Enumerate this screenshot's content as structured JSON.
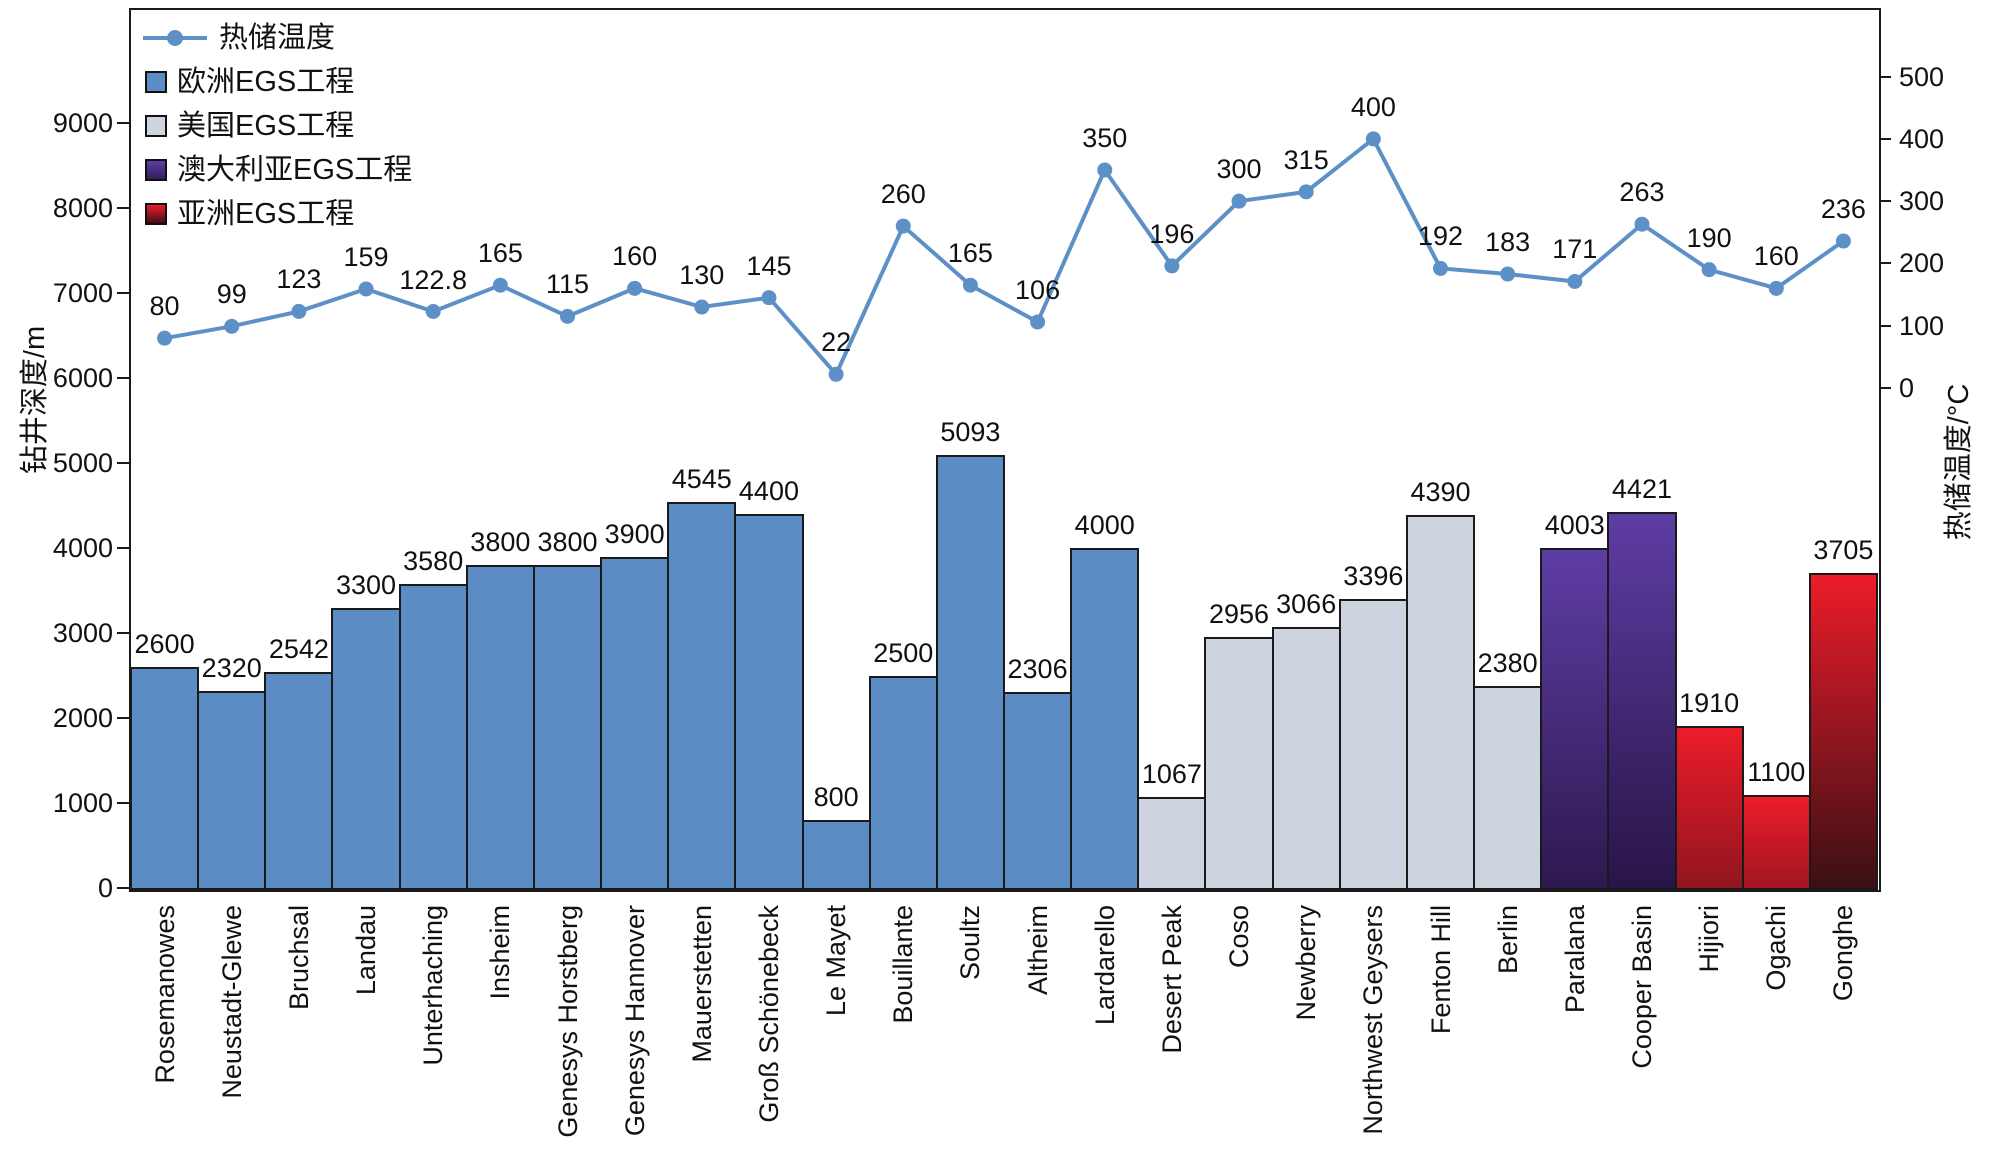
{
  "chart_data": {
    "type": "bar+line",
    "title": "",
    "categories": [
      "Rosemanowes",
      "Neustadt-Glewe",
      "Bruchsal",
      "Landau",
      "Unterhaching",
      "Insheim",
      "Genesys Horstberg",
      "Genesys Hannover",
      "Mauerstetten",
      "Groß Schönebeck",
      "Le Mayet",
      "Bouillante",
      "Soultz",
      "Altheim",
      "Lardarello",
      "Desert Peak",
      "Coso",
      "Newberry",
      "Northwest Geysers",
      "Fenton Hill",
      "Berlin",
      "Paralana",
      "Cooper Basin",
      "Hijiori",
      "Ogachi",
      "Gonghe"
    ],
    "bar_series": {
      "axis": "left",
      "values": [
        2600,
        2320,
        2542,
        3300,
        3580,
        3800,
        3800,
        3900,
        4545,
        4400,
        800,
        2500,
        5093,
        2306,
        4000,
        1067,
        2956,
        3066,
        3396,
        4390,
        2380,
        4003,
        4421,
        1910,
        1100,
        3705
      ],
      "groups": [
        {
          "name": "欧洲EGS工程",
          "count": 15,
          "color": "#5B8CC4"
        },
        {
          "name": "美国EGS工程",
          "count": 6,
          "color": "#CDD3DF"
        },
        {
          "name": "澳大利亚EGS工程",
          "count": 2,
          "color": "#5E3DA4",
          "color_dark": "#271546"
        },
        {
          "name": "亚洲EGS工程",
          "count": 3,
          "color": "#EC1C2A",
          "color_dark": "#170C0F"
        }
      ]
    },
    "line_series": {
      "name": "热储温度",
      "axis": "right",
      "color": "#5E90C8",
      "values": [
        80,
        99,
        123,
        159,
        122.8,
        165,
        115,
        160,
        130,
        145,
        22,
        260,
        165,
        106,
        350,
        196,
        300,
        315,
        400,
        192,
        183,
        171,
        263,
        190,
        160,
        236
      ]
    },
    "left_axis": {
      "label": "钻井深度/m",
      "ticks": [
        0,
        1000,
        2000,
        3000,
        4000,
        5000,
        6000,
        7000,
        8000,
        9000
      ],
      "range": [
        0,
        10330
      ]
    },
    "right_axis": {
      "label": "热储温度/°C",
      "ticks": [
        0,
        100,
        200,
        300,
        400,
        500
      ],
      "range": [
        -803,
        607
      ]
    },
    "legend_position": "top-left"
  }
}
